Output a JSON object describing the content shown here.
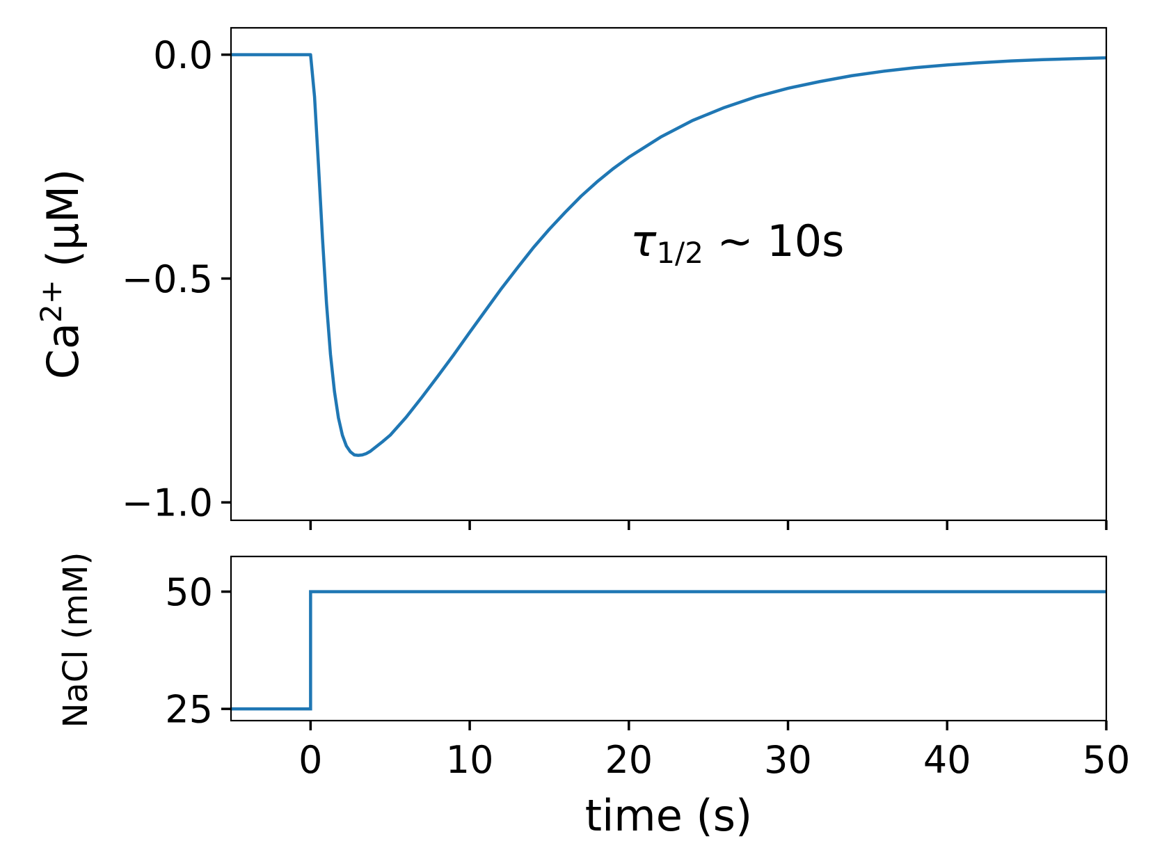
{
  "chart_data": [
    {
      "type": "line",
      "panel": "top",
      "ylabel_main": "Ca",
      "ylabel_sup": "2+",
      "ylabel_unit": "(μM)",
      "ylim": [
        -1.04,
        0.06
      ],
      "yticks": [
        0.0,
        -0.5,
        -1.0
      ],
      "ytick_labels": [
        "0.0",
        "−0.5",
        "−1.0"
      ],
      "xlim": [
        -5,
        50
      ],
      "xticks": [
        0,
        10,
        20,
        30,
        40,
        50
      ],
      "annotation": {
        "symbol": "τ",
        "subscript": "1/2",
        "rest": " ~ 10s"
      },
      "color": "#1f77b4",
      "series": [
        {
          "x": [
            -5,
            0,
            0.25,
            0.5,
            0.75,
            1,
            1.25,
            1.5,
            1.75,
            2,
            2.25,
            2.5,
            2.75,
            3,
            3.25,
            3.5,
            3.75,
            4,
            4.5,
            5,
            6,
            7,
            8,
            9,
            10,
            11,
            12,
            13,
            14,
            15,
            16,
            17,
            18,
            19,
            20,
            22,
            24,
            26,
            28,
            30,
            32,
            34,
            36,
            38,
            40,
            42,
            44,
            46,
            48,
            50
          ],
          "y": [
            0,
            0,
            -0.094,
            -0.249,
            -0.411,
            -0.555,
            -0.669,
            -0.752,
            -0.811,
            -0.85,
            -0.874,
            -0.887,
            -0.894,
            -0.895,
            -0.894,
            -0.891,
            -0.886,
            -0.879,
            -0.865,
            -0.85,
            -0.81,
            -0.765,
            -0.718,
            -0.67,
            -0.62,
            -0.571,
            -0.522,
            -0.476,
            -0.431,
            -0.39,
            -0.352,
            -0.316,
            -0.284,
            -0.255,
            -0.229,
            -0.184,
            -0.147,
            -0.118,
            -0.094,
            -0.075,
            -0.06,
            -0.047,
            -0.037,
            -0.029,
            -0.023,
            -0.018,
            -0.014,
            -0.011,
            -0.009,
            -0.007
          ]
        }
      ]
    },
    {
      "type": "line",
      "panel": "bottom",
      "ylabel": "NaCl (mM)",
      "ylim": [
        22.5,
        57.5
      ],
      "yticks": [
        50,
        25
      ],
      "ytick_labels": [
        "50",
        "25"
      ],
      "xlim": [
        -5,
        50
      ],
      "xticks": [
        0,
        10,
        20,
        30,
        40,
        50
      ],
      "xtick_labels": [
        "0",
        "10",
        "20",
        "30",
        "40",
        "50"
      ],
      "xlabel": "time (s)",
      "color": "#1f77b4",
      "series": [
        {
          "x": [
            -5,
            0,
            0,
            50
          ],
          "y": [
            25,
            25,
            50,
            50
          ]
        }
      ]
    }
  ]
}
